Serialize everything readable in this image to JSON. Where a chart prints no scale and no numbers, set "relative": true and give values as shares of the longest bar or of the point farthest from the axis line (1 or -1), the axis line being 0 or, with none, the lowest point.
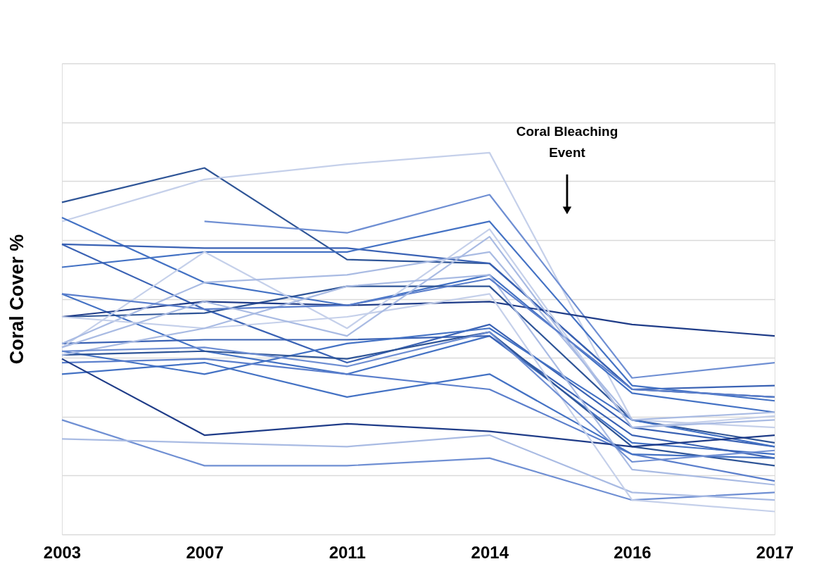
{
  "chart_data": {
    "type": "line",
    "relative": true,
    "ylabel": "Coral Cover %",
    "grid": "y",
    "legend": false,
    "marker": "none",
    "line_style": "solid",
    "categories": [
      "2003",
      "2007",
      "2011",
      "2014",
      "2016",
      "2017"
    ],
    "annotations": [
      "Coral Bleaching Event"
    ],
    "series": [
      {
        "color": "#2f5597",
        "values": [
          0.87,
          0.96,
          0.72,
          0.71,
          0.38,
          0.36
        ]
      },
      {
        "color": "#c5d0ea",
        "values": [
          0.82,
          0.93,
          0.97,
          1.0,
          0.3,
          0.28
        ]
      },
      {
        "color": "#4472c4",
        "values": [
          0.83,
          0.66,
          0.6,
          0.68,
          0.37,
          0.32
        ]
      },
      {
        "color": "#6f8fd3",
        "values": [
          null,
          0.82,
          0.79,
          0.89,
          0.41,
          0.45
        ]
      },
      {
        "color": "#3a62b4",
        "values": [
          0.76,
          0.75,
          0.75,
          0.71,
          0.38,
          0.39
        ]
      },
      {
        "color": "#4472c4",
        "values": [
          0.7,
          0.74,
          0.74,
          0.82,
          0.39,
          0.35
        ]
      },
      {
        "color": "#3a62b4",
        "values": [
          0.76,
          0.59,
          0.45,
          0.55,
          0.28,
          0.23
        ]
      },
      {
        "color": "#4472c4",
        "values": [
          0.63,
          0.48,
          0.42,
          0.52,
          0.24,
          0.21
        ]
      },
      {
        "color": "#2f5597",
        "values": [
          0.57,
          0.58,
          0.65,
          0.65,
          0.3,
          0.24
        ]
      },
      {
        "color": "#1f3c88",
        "values": [
          0.57,
          0.61,
          0.6,
          0.61,
          0.55,
          0.52
        ]
      },
      {
        "color": "#3a62b4",
        "values": [
          0.5,
          0.51,
          0.51,
          0.52,
          0.26,
          0.2
        ]
      },
      {
        "color": "#4472c4",
        "values": [
          0.48,
          0.42,
          0.5,
          0.54,
          0.3,
          0.23
        ]
      },
      {
        "color": "#2f5597",
        "values": [
          0.47,
          0.48,
          0.46,
          0.53,
          0.23,
          0.18
        ]
      },
      {
        "color": "#5b7fcc",
        "values": [
          0.45,
          0.46,
          0.42,
          0.38,
          0.21,
          0.14
        ]
      },
      {
        "color": "#4472c4",
        "values": [
          0.42,
          0.45,
          0.36,
          0.42,
          0.21,
          0.2
        ]
      },
      {
        "color": "#1f3c88",
        "values": [
          0.46,
          0.26,
          0.29,
          0.27,
          0.23,
          0.26
        ]
      },
      {
        "color": "#6f8fd3",
        "values": [
          0.3,
          0.18,
          0.18,
          0.2,
          0.09,
          0.11
        ]
      },
      {
        "color": "#a9bbe3",
        "values": [
          0.25,
          0.24,
          0.23,
          0.26,
          0.11,
          0.09
        ]
      },
      {
        "color": "#c5d0ea",
        "values": [
          0.49,
          0.74,
          0.54,
          0.8,
          0.28,
          0.31
        ]
      },
      {
        "color": "#a9bbe3",
        "values": [
          0.5,
          0.66,
          0.68,
          0.74,
          0.3,
          0.32
        ]
      },
      {
        "color": "#c5d0ea",
        "values": [
          0.57,
          0.54,
          0.57,
          0.63,
          0.09,
          0.06
        ]
      },
      {
        "color": "#a9bbe3",
        "values": [
          0.47,
          0.54,
          0.65,
          0.68,
          0.17,
          0.13
        ]
      },
      {
        "color": "#5b7fcc",
        "values": [
          0.63,
          0.59,
          0.6,
          0.67,
          0.38,
          0.36
        ]
      },
      {
        "color": "#6f8fd3",
        "values": [
          0.48,
          0.49,
          0.44,
          0.53,
          0.19,
          0.22
        ]
      },
      {
        "color": "#a9bbe3",
        "values": [
          0.49,
          0.61,
          0.52,
          0.78,
          0.28,
          0.3
        ]
      }
    ]
  }
}
